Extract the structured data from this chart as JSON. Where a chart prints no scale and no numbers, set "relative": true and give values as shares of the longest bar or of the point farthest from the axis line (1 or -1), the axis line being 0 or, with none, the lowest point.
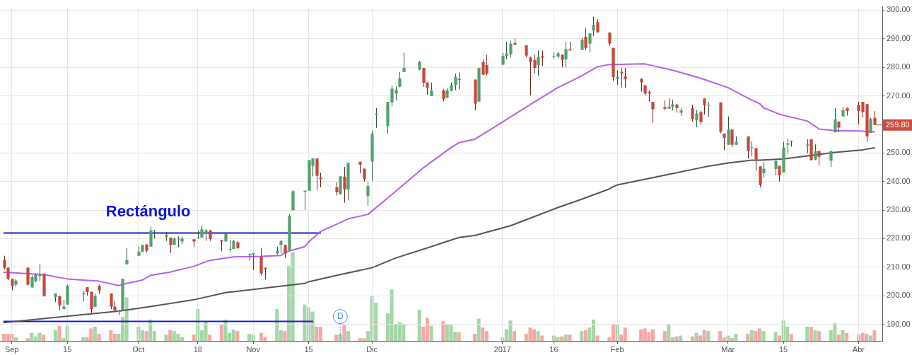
{
  "chart_data": [
    {
      "type": "candlestick",
      "x": [
        "2016-08-30",
        "2016-08-31",
        "2016-09-01",
        "2016-09-02",
        "2016-09-05",
        "2016-09-06",
        "2016-09-07",
        "2016-09-08",
        "2016-09-09",
        "2016-09-12",
        "2016-09-13",
        "2016-09-14",
        "2016-09-15",
        "2016-09-19",
        "2016-09-20",
        "2016-09-21",
        "2016-09-22",
        "2016-09-23",
        "2016-09-26",
        "2016-09-27",
        "2016-09-28",
        "2016-09-29",
        "2016-09-30",
        "2016-10-03",
        "2016-10-04",
        "2016-10-05",
        "2016-10-06",
        "2016-10-07",
        "2016-10-10",
        "2016-10-11",
        "2016-10-12",
        "2016-10-13",
        "2016-10-14",
        "2016-10-17",
        "2016-10-18",
        "2016-10-19",
        "2016-10-20",
        "2016-10-21",
        "2016-10-24",
        "2016-10-25",
        "2016-10-26",
        "2016-10-27",
        "2016-10-28",
        "2016-10-31",
        "2016-11-01",
        "2016-11-03",
        "2016-11-04",
        "2016-11-07",
        "2016-11-08",
        "2016-11-09",
        "2016-11-10",
        "2016-11-11",
        "2016-11-14",
        "2016-11-15",
        "2016-11-16",
        "2016-11-17",
        "2016-11-18",
        "2016-11-22",
        "2016-11-23",
        "2016-11-24",
        "2016-11-25",
        "2016-11-28",
        "2016-11-29",
        "2016-11-30",
        "2016-12-01",
        "2016-12-02",
        "2016-12-05",
        "2016-12-06",
        "2016-12-07",
        "2016-12-08",
        "2016-12-09",
        "2016-12-13",
        "2016-12-14",
        "2016-12-15",
        "2016-12-16",
        "2016-12-19",
        "2016-12-20",
        "2016-12-21",
        "2016-12-22",
        "2016-12-23",
        "2016-12-27",
        "2016-12-28",
        "2016-12-29",
        "2016-12-30",
        "2017-01-03",
        "2017-01-04",
        "2017-01-05",
        "2017-01-06",
        "2017-01-09",
        "2017-01-10",
        "2017-01-11",
        "2017-01-12",
        "2017-01-13",
        "2017-01-16",
        "2017-01-17",
        "2017-01-18",
        "2017-01-19",
        "2017-01-20",
        "2017-01-23",
        "2017-01-24",
        "2017-01-25",
        "2017-01-26",
        "2017-01-27",
        "2017-01-30",
        "2017-01-31",
        "2017-02-01",
        "2017-02-02",
        "2017-02-03",
        "2017-02-07",
        "2017-02-08",
        "2017-02-09",
        "2017-02-10",
        "2017-02-13",
        "2017-02-14",
        "2017-02-15",
        "2017-02-16",
        "2017-02-17",
        "2017-02-20",
        "2017-02-21",
        "2017-02-22",
        "2017-02-23",
        "2017-02-24",
        "2017-02-27",
        "2017-02-28",
        "2017-03-01",
        "2017-03-02",
        "2017-03-03",
        "2017-03-06",
        "2017-03-07",
        "2017-03-08",
        "2017-03-09",
        "2017-03-10",
        "2017-03-13",
        "2017-03-14",
        "2017-03-15",
        "2017-03-16",
        "2017-03-17",
        "2017-03-21",
        "2017-03-22",
        "2017-03-23",
        "2017-03-24",
        "2017-03-27",
        "2017-03-28",
        "2017-03-29",
        "2017-03-30",
        "2017-03-31",
        "2017-04-03",
        "2017-04-04",
        "2017-04-05",
        "2017-04-06",
        "2017-04-07"
      ],
      "ohlc": [
        [
          212.6,
          214.0,
          209.2,
          209.8
        ],
        [
          209.8,
          210.0,
          205.5,
          205.9
        ],
        [
          205.9,
          206.0,
          201.9,
          203.5
        ],
        [
          203.9,
          205.9,
          203.1,
          205.3
        ],
        [
          209.8,
          210.0,
          203.5,
          203.9
        ],
        [
          202.9,
          207.1,
          202.9,
          206.5
        ],
        [
          205.0,
          207.8,
          204.8,
          207.3
        ],
        [
          206.9,
          211.2,
          205.1,
          207.7
        ],
        [
          207.7,
          207.8,
          199.7,
          199.9
        ],
        [
          199.6,
          200.8,
          197.8,
          200.8
        ],
        [
          199.9,
          200.0,
          194.8,
          196.6
        ],
        [
          195.3,
          198.5,
          195.3,
          196.2
        ],
        [
          196.9,
          203.9,
          196.9,
          203.5
        ],
        [
          200.5,
          201.5,
          198.1,
          200.9
        ],
        [
          203.0,
          203.0,
          200.1,
          201.3
        ],
        [
          201.3,
          201.5,
          194.0,
          195.3
        ],
        [
          196.1,
          200.8,
          196.1,
          199.9
        ],
        [
          203.5,
          203.9,
          200.7,
          201.9
        ],
        [
          200.8,
          200.8,
          195.3,
          196.2
        ],
        [
          196.2,
          198.1,
          194.8,
          194.8
        ],
        [
          194.6,
          195.0,
          193.2,
          194.6
        ],
        [
          195.0,
          205.9,
          195.0,
          205.9
        ],
        [
          211.0,
          216.8,
          211.0,
          212.5
        ],
        [
          214.0,
          217.2,
          214.0,
          215.4
        ],
        [
          215.4,
          217.8,
          215.4,
          217.8
        ],
        [
          218.0,
          218.0,
          215.2,
          215.8
        ],
        [
          217.2,
          224.3,
          217.2,
          222.9
        ],
        [
          222.9,
          223.1,
          220.0,
          222.9
        ],
        [
          220.5,
          222.4,
          219.2,
          221.2
        ],
        [
          220.4,
          220.4,
          215.0,
          217.8
        ],
        [
          217.8,
          220.4,
          217.8,
          220.0
        ],
        [
          220.0,
          220.8,
          217.0,
          220.0
        ],
        [
          219.0,
          220.8,
          218.0,
          220.0
        ],
        [
          219.8,
          219.8,
          217.0,
          219.0
        ],
        [
          220.4,
          222.9,
          220.0,
          220.4
        ],
        [
          220.4,
          224.6,
          220.4,
          223.3
        ],
        [
          221.6,
          223.4,
          219.2,
          222.9
        ],
        [
          222.9,
          223.1,
          219.2,
          219.9
        ],
        [
          219.5,
          219.5,
          215.6,
          219.0
        ],
        [
          219.0,
          222.2,
          219.0,
          221.6
        ],
        [
          216.2,
          219.5,
          215.2,
          216.4
        ],
        [
          216.4,
          219.6,
          216.4,
          219.2
        ],
        [
          218.7,
          219.1,
          216.6,
          216.6
        ],
        [
          214.2,
          214.9,
          212.2,
          214.6
        ],
        [
          214.4,
          214.9,
          209.0,
          214.9
        ],
        [
          213.8,
          216.8,
          207.1,
          207.8
        ],
        [
          209.8,
          209.8,
          205.7,
          209.3
        ],
        [
          214.8,
          217.2,
          214.4,
          215.8
        ],
        [
          217.8,
          219.6,
          215.0,
          219.1
        ],
        [
          217.8,
          217.8,
          213.2,
          214.8
        ],
        [
          215.8,
          228.5,
          215.8,
          227.9
        ],
        [
          229.9,
          237.0,
          229.9,
          236.6
        ],
        [
          236.4,
          236.8,
          230.1,
          236.8
        ],
        [
          236.8,
          247.5,
          236.8,
          247.5
        ],
        [
          245.5,
          248.1,
          241.8,
          248.1
        ],
        [
          248.1,
          248.1,
          237.0,
          242.0
        ],
        [
          241.4,
          243.1,
          238.0,
          240.8
        ],
        [
          238.0,
          239.8,
          235.1,
          236.2
        ],
        [
          235.5,
          241.8,
          235.5,
          241.8
        ],
        [
          241.7,
          245.1,
          232.6,
          237.2
        ],
        [
          237.2,
          246.5,
          233.4,
          246.5
        ],
        [
          246.9,
          246.9,
          242.9,
          245.9
        ],
        [
          244.5,
          244.5,
          240.0,
          240.8
        ],
        [
          234.9,
          239.7,
          231.5,
          238.4
        ],
        [
          247.0,
          257.8,
          240.1,
          256.8
        ],
        [
          263.3,
          265.7,
          258.8,
          263.8
        ],
        [
          259.4,
          267.9,
          256.8,
          267.9
        ],
        [
          267.7,
          273.6,
          266.3,
          272.5
        ],
        [
          270.8,
          273.3,
          268.5,
          272.1
        ],
        [
          273.2,
          278.4,
          273.0,
          276.2
        ],
        [
          278.4,
          285.1,
          278.4,
          279.8
        ],
        [
          279.2,
          282.2,
          279.0,
          281.8
        ],
        [
          279.8,
          279.8,
          273.1,
          274.6
        ],
        [
          274.7,
          274.7,
          270.4,
          272.8
        ],
        [
          269.9,
          274.7,
          269.9,
          271.9
        ],
        [
          271.9,
          272.3,
          268.1,
          268.9
        ],
        [
          269.3,
          272.7,
          269.3,
          271.9
        ],
        [
          271.7,
          274.7,
          271.7,
          273.8
        ],
        [
          273.8,
          277.8,
          272.0,
          276.7
        ],
        [
          275.9,
          278.2,
          272.3,
          275.6
        ],
        [
          275.7,
          275.7,
          265.0,
          267.3
        ],
        [
          268.0,
          279.8,
          268.0,
          279.8
        ],
        [
          281.8,
          282.8,
          277.4,
          277.4
        ],
        [
          280.8,
          284.4,
          277.1,
          277.8
        ],
        [
          280.9,
          285.0,
          280.9,
          284.0
        ],
        [
          284.0,
          288.9,
          282.8,
          284.9
        ],
        [
          284.6,
          289.3,
          283.3,
          288.3
        ],
        [
          288.5,
          290.1,
          287.9,
          287.9
        ],
        [
          287.7,
          287.7,
          283.6,
          284.1
        ],
        [
          283.4,
          283.8,
          270.1,
          281.8
        ],
        [
          282.6,
          284.4,
          277.9,
          279.8
        ],
        [
          280.8,
          285.9,
          277.1,
          283.7
        ],
        [
          283.9,
          285.9,
          280.4,
          283.4
        ],
        [
          284.0,
          285.2,
          282.8,
          284.0
        ],
        [
          283.8,
          285.4,
          283.3,
          284.9
        ],
        [
          284.4,
          284.4,
          280.0,
          282.6
        ],
        [
          282.8,
          288.9,
          280.0,
          286.4
        ],
        [
          286.3,
          288.9,
          285.9,
          285.9
        ],
        [
          286.1,
          290.3,
          286.1,
          289.7
        ],
        [
          290.7,
          293.9,
          286.0,
          286.8
        ],
        [
          288.3,
          291.9,
          285.1,
          291.9
        ],
        [
          292.9,
          297.7,
          290.9,
          294.9
        ],
        [
          295.8,
          296.8,
          292.2,
          292.2
        ],
        [
          292.2,
          292.2,
          287.5,
          288.3
        ],
        [
          286.8,
          286.8,
          275.2,
          276.6
        ],
        [
          276.0,
          279.0,
          273.9,
          276.7
        ],
        [
          278.4,
          279.8,
          272.9,
          277.9
        ],
        [
          276.8,
          279.8,
          272.9,
          275.9
        ],
        [
          275.9,
          276.2,
          271.5,
          274.7
        ],
        [
          273.7,
          273.7,
          270.1,
          270.8
        ],
        [
          271.3,
          271.9,
          268.1,
          270.8
        ],
        [
          267.9,
          267.9,
          260.6,
          265.3
        ],
        [
          266.1,
          268.5,
          265.0,
          265.5
        ],
        [
          265.5,
          269.1,
          265.5,
          266.2
        ],
        [
          266.2,
          268.7,
          264.9,
          267.0
        ],
        [
          267.0,
          267.0,
          264.1,
          265.7
        ],
        [
          264.1,
          265.8,
          263.1,
          264.9
        ],
        [
          265.7,
          266.8,
          261.0,
          261.9
        ],
        [
          261.4,
          265.0,
          259.0,
          263.8
        ],
        [
          264.3,
          264.9,
          260.0,
          260.8
        ],
        [
          269.1,
          269.1,
          263.5,
          266.7
        ],
        [
          266.8,
          267.9,
          262.6,
          266.8
        ],
        [
          267.7,
          267.7,
          256.9,
          257.4
        ],
        [
          256.8,
          256.8,
          251.0,
          255.3
        ],
        [
          252.9,
          262.8,
          252.9,
          258.2
        ],
        [
          258.2,
          258.2,
          252.1,
          252.9
        ],
        [
          252.9,
          255.8,
          252.9,
          254.0
        ],
        [
          255.8,
          255.8,
          248.0,
          250.7
        ],
        [
          251.9,
          254.0,
          248.9,
          251.9
        ],
        [
          251.7,
          251.7,
          243.9,
          247.7
        ],
        [
          245.3,
          245.3,
          238.0,
          238.8
        ],
        [
          242.9,
          246.9,
          241.4,
          244.5
        ],
        [
          244.4,
          247.3,
          242.2,
          247.3
        ],
        [
          245.5,
          245.5,
          240.0,
          242.2
        ],
        [
          243.2,
          253.9,
          243.2,
          251.9
        ],
        [
          252.9,
          255.0,
          249.9,
          253.4
        ],
        [
          254.3,
          254.3,
          252.2,
          254.1
        ],
        [
          252.6,
          254.8,
          249.9,
          253.0
        ],
        [
          254.8,
          254.8,
          247.5,
          247.5
        ],
        [
          247.7,
          253.0,
          247.5,
          250.7
        ],
        [
          250.7,
          250.7,
          245.6,
          248.7
        ],
        [
          247.3,
          250.7,
          245.1,
          250.7
        ],
        [
          257.2,
          265.7,
          257.2,
          261.8
        ],
        [
          261.0,
          261.0,
          257.4,
          258.9
        ],
        [
          262.8,
          266.2,
          262.8,
          265.0
        ],
        [
          265.8,
          265.8,
          263.1,
          264.7
        ],
        [
          266.9,
          267.9,
          260.0,
          264.7
        ],
        [
          267.9,
          267.9,
          262.3,
          264.3
        ],
        [
          267.1,
          267.1,
          253.9,
          255.8
        ],
        [
          257.0,
          262.4,
          257.0,
          261.9
        ],
        [
          262.3,
          264.7,
          259.8,
          259.8
        ]
      ],
      "colors": [
        "#c8463a",
        "#c8463a",
        "#c8463a",
        "#53a06e",
        "#c8463a",
        "#53a06e",
        "#53a06e",
        "#53a06e",
        "#c8463a",
        "#53a06e",
        "#c8463a",
        "#53a06e",
        "#53a06e",
        "#53a06e",
        "#c8463a",
        "#c8463a",
        "#53a06e",
        "#c8463a",
        "#c8463a",
        "#c8463a",
        "#53a06e",
        "#53a06e",
        "#53a06e",
        "#53a06e",
        "#53a06e",
        "#c8463a",
        "#53a06e",
        "#53a06e",
        "#53a06e",
        "#c8463a",
        "#53a06e",
        "#53a06e",
        "#53a06e",
        "#c8463a",
        "#53a06e",
        "#53a06e",
        "#53a06e",
        "#c8463a",
        "#c8463a",
        "#53a06e",
        "#53a06e",
        "#53a06e",
        "#c8463a",
        "#53a06e",
        "#53a06e",
        "#c8463a",
        "#c8463a",
        "#53a06e",
        "#53a06e",
        "#c8463a",
        "#53a06e",
        "#53a06e",
        "#53a06e",
        "#53a06e",
        "#53a06e",
        "#c8463a",
        "#c8463a",
        "#c8463a",
        "#53a06e",
        "#c8463a",
        "#53a06e",
        "#c8463a",
        "#c8463a",
        "#53a06e",
        "#53a06e",
        "#53a06e",
        "#53a06e",
        "#53a06e",
        "#53a06e",
        "#53a06e",
        "#53a06e",
        "#53a06e",
        "#c8463a",
        "#c8463a",
        "#53a06e",
        "#c8463a",
        "#53a06e",
        "#53a06e",
        "#53a06e",
        "#c8463a",
        "#c8463a",
        "#53a06e",
        "#c8463a",
        "#c8463a",
        "#53a06e",
        "#53a06e",
        "#53a06e",
        "#c8463a",
        "#c8463a",
        "#c8463a",
        "#c8463a",
        "#53a06e",
        "#c8463a",
        "#53a06e",
        "#53a06e",
        "#c8463a",
        "#53a06e",
        "#c8463a",
        "#53a06e",
        "#c8463a",
        "#53a06e",
        "#53a06e",
        "#c8463a",
        "#c8463a",
        "#c8463a",
        "#53a06e",
        "#c8463a",
        "#c8463a",
        "#c8463a",
        "#c8463a",
        "#c8463a",
        "#c8463a",
        "#c8463a",
        "#53a06e",
        "#53a06e",
        "#c8463a",
        "#53a06e",
        "#c8463a",
        "#53a06e",
        "#c8463a",
        "#c8463a",
        "#53a06e",
        "#c8463a",
        "#c8463a",
        "#53a06e",
        "#c8463a",
        "#53a06e",
        "#c8463a",
        "#53a06e",
        "#c8463a",
        "#c8463a",
        "#53a06e",
        "#53a06e",
        "#c8463a",
        "#53a06e",
        "#53a06e",
        "#c8463a",
        "#53a06e",
        "#c8463a",
        "#53a06e",
        "#c8463a",
        "#53a06e",
        "#53a06e",
        "#c8463a",
        "#53a06e",
        "#c8463a",
        "#c8463a",
        "#c8463a",
        "#c8463a",
        "#53a06e",
        "#c8463a"
      ],
      "series": [
        {
          "type": "line",
          "color": "#b660e8",
          "x": [
            "2016-08-30",
            "2016-09-09",
            "2016-09-15",
            "2016-09-23",
            "2016-09-28",
            "2016-09-30",
            "2016-10-04",
            "2016-10-06",
            "2016-10-11",
            "2016-10-17",
            "2016-10-21",
            "2016-10-27",
            "2016-11-03",
            "2016-11-08",
            "2016-11-09",
            "2016-11-14",
            "2016-11-15",
            "2016-11-18",
            "2016-11-25",
            "2016-11-30",
            "2016-12-06",
            "2016-12-14",
            "2016-12-21",
            "2016-12-23",
            "2016-12-27",
            "2017-01-03",
            "2017-01-09",
            "2017-01-17",
            "2017-01-23",
            "2017-01-27",
            "2017-01-30",
            "2017-01-31",
            "2017-02-08",
            "2017-02-15",
            "2017-02-22",
            "2017-03-01",
            "2017-03-07",
            "2017-03-09",
            "2017-03-10",
            "2017-03-14",
            "2017-03-21",
            "2017-03-24",
            "2017-03-28",
            "2017-04-03",
            "2017-04-07"
          ],
          "values": [
            208.2,
            207.4,
            205.9,
            205.1,
            203.6,
            204.3,
            205.5,
            207.1,
            208.3,
            210.3,
            212.4,
            213.6,
            213.8,
            214.1,
            215.2,
            217.2,
            218.8,
            222.5,
            226.9,
            228.5,
            235.4,
            244.8,
            251.9,
            253.6,
            254.8,
            260.8,
            266.1,
            272.9,
            277.0,
            280.2,
            281.0,
            281.0,
            281.2,
            279.0,
            276.2,
            272.9,
            268.5,
            267.3,
            265.8,
            263.6,
            261.2,
            258.4,
            257.8,
            257.7,
            257.4
          ]
        },
        {
          "type": "line",
          "color": "#555555",
          "x": [
            "2016-08-30",
            "2016-09-09",
            "2016-09-22",
            "2016-09-28",
            "2016-10-06",
            "2016-10-17",
            "2016-10-25",
            "2016-11-03",
            "2016-11-09",
            "2016-11-14",
            "2016-11-15",
            "2016-11-23",
            "2016-12-01",
            "2016-12-07",
            "2016-12-16",
            "2016-12-21",
            "2016-12-23",
            "2016-12-27",
            "2017-01-05",
            "2017-01-17",
            "2017-01-23",
            "2017-01-30",
            "2017-01-31",
            "2017-02-01",
            "2017-02-13",
            "2017-02-23",
            "2017-03-01",
            "2017-03-07",
            "2017-03-09",
            "2017-03-15",
            "2017-03-28",
            "2017-04-04",
            "2017-04-07"
          ],
          "values": [
            190.6,
            192.0,
            193.8,
            194.6,
            196.2,
            198.6,
            201.1,
            202.5,
            203.5,
            204.3,
            204.9,
            207.4,
            209.8,
            213.2,
            217.2,
            219.5,
            220.4,
            221.1,
            224.5,
            230.9,
            233.8,
            237.4,
            238.2,
            238.8,
            242.2,
            245.1,
            246.5,
            247.5,
            247.5,
            247.9,
            250.2,
            251.1,
            251.8
          ]
        },
        {
          "type": "line",
          "color": "#1a1acc",
          "x": [
            "2016-08-30",
            "2016-11-18"
          ],
          "values": [
            222,
            222
          ]
        },
        {
          "type": "line",
          "color": "#1a1acc",
          "x": [
            "2016-08-30",
            "2016-11-16"
          ],
          "values": [
            191,
            191
          ]
        }
      ],
      "xlim": [
        "2016-08-29",
        "2017-04-09"
      ],
      "xticks": [
        {
          "value": "2016-09-01",
          "label": "Sep"
        },
        {
          "value": "2016-09-15",
          "label": "15"
        },
        {
          "value": "2016-10-03",
          "label": "Oct"
        },
        {
          "value": "2016-10-18",
          "label": "18"
        },
        {
          "value": "2016-11-01",
          "label": "Nov"
        },
        {
          "value": "2016-11-15",
          "label": "15"
        },
        {
          "value": "2016-12-01",
          "label": "Dic"
        },
        {
          "value": "2017-01-03",
          "label": "2017"
        },
        {
          "value": "2017-01-16",
          "label": "16"
        },
        {
          "value": "2017-02-01",
          "label": "Feb"
        },
        {
          "value": "2017-03-01",
          "label": "Mar"
        },
        {
          "value": "2017-03-15",
          "label": "15"
        },
        {
          "value": "2017-04-03",
          "label": "Abr"
        }
      ],
      "ylim": [
        184.2,
        301.2
      ],
      "yticks": [
        {
          "value": 190,
          "label": "190.00"
        },
        {
          "value": 200,
          "label": "200.00"
        },
        {
          "value": 210,
          "label": "210.00"
        },
        {
          "value": 220,
          "label": "220.00"
        },
        {
          "value": 230,
          "label": "230.00"
        },
        {
          "value": 240,
          "label": "240.00"
        },
        {
          "value": 250,
          "label": "250.00"
        },
        {
          "value": 260,
          "label": null
        },
        {
          "value": 270,
          "label": "270.00"
        },
        {
          "value": 280,
          "label": "280.00"
        },
        {
          "value": 290,
          "label": "290.00"
        },
        {
          "value": 300,
          "label": "300.00"
        }
      ],
      "grid": true,
      "annotations": [
        "Rectángulo",
        {
          "text": "D",
          "x": "2016-11-23",
          "y": 192.7
        },
        {
          "text": "259.80",
          "x": "2017-04-07",
          "y": 259.8
        }
      ]
    },
    {
      "type": "bar",
      "relative": true,
      "tick_labels": false,
      "x": [
        "2016-08-30",
        "2016-08-31",
        "2016-09-01",
        "2016-09-02",
        "2016-09-05",
        "2016-09-06",
        "2016-09-07",
        "2016-09-08",
        "2016-09-09",
        "2016-09-12",
        "2016-09-13",
        "2016-09-14",
        "2016-09-15",
        "2016-09-19",
        "2016-09-20",
        "2016-09-21",
        "2016-09-22",
        "2016-09-23",
        "2016-09-26",
        "2016-09-27",
        "2016-09-28",
        "2016-09-29",
        "2016-09-30",
        "2016-10-03",
        "2016-10-04",
        "2016-10-05",
        "2016-10-06",
        "2016-10-07",
        "2016-10-10",
        "2016-10-11",
        "2016-10-12",
        "2016-10-13",
        "2016-10-14",
        "2016-10-17",
        "2016-10-18",
        "2016-10-19",
        "2016-10-20",
        "2016-10-21",
        "2016-10-24",
        "2016-10-25",
        "2016-10-26",
        "2016-10-27",
        "2016-10-28",
        "2016-10-31",
        "2016-11-01",
        "2016-11-03",
        "2016-11-04",
        "2016-11-07",
        "2016-11-08",
        "2016-11-09",
        "2016-11-10",
        "2016-11-11",
        "2016-11-14",
        "2016-11-15",
        "2016-11-16",
        "2016-11-17",
        "2016-11-18",
        "2016-11-22",
        "2016-11-23",
        "2016-11-24",
        "2016-11-25",
        "2016-11-28",
        "2016-11-29",
        "2016-11-30",
        "2016-12-01",
        "2016-12-02",
        "2016-12-05",
        "2016-12-06",
        "2016-12-07",
        "2016-12-08",
        "2016-12-09",
        "2016-12-13",
        "2016-12-14",
        "2016-12-15",
        "2016-12-16",
        "2016-12-19",
        "2016-12-20",
        "2016-12-21",
        "2016-12-22",
        "2016-12-23",
        "2016-12-27",
        "2016-12-28",
        "2016-12-29",
        "2016-12-30",
        "2017-01-03",
        "2017-01-04",
        "2017-01-05",
        "2017-01-06",
        "2017-01-09",
        "2017-01-10",
        "2017-01-11",
        "2017-01-12",
        "2017-01-13",
        "2017-01-16",
        "2017-01-17",
        "2017-01-18",
        "2017-01-19",
        "2017-01-20",
        "2017-01-23",
        "2017-01-24",
        "2017-01-25",
        "2017-01-26",
        "2017-01-27",
        "2017-01-30",
        "2017-01-31",
        "2017-02-01",
        "2017-02-02",
        "2017-02-03",
        "2017-02-07",
        "2017-02-08",
        "2017-02-09",
        "2017-02-10",
        "2017-02-13",
        "2017-02-14",
        "2017-02-15",
        "2017-02-16",
        "2017-02-17",
        "2017-02-20",
        "2017-02-21",
        "2017-02-22",
        "2017-02-23",
        "2017-02-24",
        "2017-02-27",
        "2017-02-28",
        "2017-03-01",
        "2017-03-02",
        "2017-03-03",
        "2017-03-06",
        "2017-03-07",
        "2017-03-08",
        "2017-03-09",
        "2017-03-10",
        "2017-03-13",
        "2017-03-14",
        "2017-03-15",
        "2017-03-16",
        "2017-03-17",
        "2017-03-21",
        "2017-03-22",
        "2017-03-23",
        "2017-03-24",
        "2017-03-27",
        "2017-03-28",
        "2017-03-29",
        "2017-03-30",
        "2017-03-31",
        "2017-04-03",
        "2017-04-04",
        "2017-04-05",
        "2017-04-06",
        "2017-04-07"
      ],
      "values": [
        0.08,
        0.08,
        0.08,
        0.04,
        0.03,
        0.09,
        0.05,
        0.09,
        0.07,
        0.12,
        0.17,
        0.03,
        0.17,
        0.04,
        0.04,
        0.14,
        0.16,
        0.08,
        0.12,
        0.08,
        0.08,
        0.27,
        0.49,
        0.16,
        0.12,
        0.11,
        0.24,
        0.11,
        0.07,
        0.12,
        0.11,
        0.08,
        0.04,
        0.07,
        0.36,
        0.12,
        0.22,
        0.07,
        0.18,
        0.24,
        0.09,
        0.13,
        0.11,
        0.08,
        0.07,
        0.09,
        0.04,
        0.36,
        0.12,
        0.11,
        0.85,
        1,
        0.41,
        0.38,
        0.33,
        0.16,
        0.16,
        0.07,
        0.08,
        0.18,
        0.11,
        0.03,
        0.03,
        0.11,
        0.51,
        0.43,
        0.31,
        0.58,
        0.19,
        0.21,
        0.19,
        0.35,
        0.16,
        0.26,
        0.17,
        0.22,
        0.19,
        0.18,
        0.1,
        0.1,
        0.08,
        0.25,
        0.15,
        0.11,
        0.04,
        0.13,
        0.23,
        0.11,
        0.08,
        0.15,
        0.13,
        0.11,
        0.06,
        0.06,
        0.04,
        0.05,
        0.07,
        0.07,
        0.11,
        0.12,
        0.15,
        0.24,
        0.06,
        0.04,
        0.19,
        0.19,
        0.07,
        0.15,
        0.13,
        0.14,
        0.1,
        0.13,
        0.11,
        0.18,
        0.04,
        0.05,
        0.06,
        0.05,
        0.09,
        0.06,
        0.12,
        0.11,
        0.11,
        0.04,
        0.06,
        0.03,
        0.08,
        0.08,
        0.12,
        0.11,
        0.14,
        0.11,
        0.1,
        0.06,
        0.23,
        0.16,
        0.08,
        0.16,
        0.16,
        0.12,
        0.11,
        0.12,
        0.2,
        0.07,
        0.12,
        0.09,
        0.07,
        0.09,
        0.08,
        0.06,
        0.12
      ],
      "colors": [
        "#f7a8a6",
        "#f7a8a6",
        "#f7a8a6",
        "#a5d6a7",
        "#f7a8a6",
        "#a5d6a7",
        "#a5d6a7",
        "#a5d6a7",
        "#f7a8a6",
        "#a5d6a7",
        "#f7a8a6",
        "#a5d6a7",
        "#a5d6a7",
        "#a5d6a7",
        "#f7a8a6",
        "#f7a8a6",
        "#a5d6a7",
        "#f7a8a6",
        "#f7a8a6",
        "#f7a8a6",
        "#a5d6a7",
        "#a5d6a7",
        "#a5d6a7",
        "#a5d6a7",
        "#a5d6a7",
        "#f7a8a6",
        "#a5d6a7",
        "#a5d6a7",
        "#a5d6a7",
        "#f7a8a6",
        "#a5d6a7",
        "#a5d6a7",
        "#a5d6a7",
        "#f7a8a6",
        "#a5d6a7",
        "#a5d6a7",
        "#a5d6a7",
        "#f7a8a6",
        "#f7a8a6",
        "#a5d6a7",
        "#a5d6a7",
        "#a5d6a7",
        "#f7a8a6",
        "#a5d6a7",
        "#a5d6a7",
        "#f7a8a6",
        "#f7a8a6",
        "#a5d6a7",
        "#a5d6a7",
        "#f7a8a6",
        "#a5d6a7",
        "#a5d6a7",
        "#a5d6a7",
        "#a5d6a7",
        "#a5d6a7",
        "#f7a8a6",
        "#f7a8a6",
        "#f7a8a6",
        "#a5d6a7",
        "#f7a8a6",
        "#a5d6a7",
        "#f7a8a6",
        "#f7a8a6",
        "#a5d6a7",
        "#a5d6a7",
        "#a5d6a7",
        "#a5d6a7",
        "#a5d6a7",
        "#a5d6a7",
        "#a5d6a7",
        "#a5d6a7",
        "#a5d6a7",
        "#f7a8a6",
        "#f7a8a6",
        "#a5d6a7",
        "#f7a8a6",
        "#a5d6a7",
        "#a5d6a7",
        "#a5d6a7",
        "#f7a8a6",
        "#f7a8a6",
        "#a5d6a7",
        "#f7a8a6",
        "#f7a8a6",
        "#a5d6a7",
        "#a5d6a7",
        "#a5d6a7",
        "#f7a8a6",
        "#f7a8a6",
        "#f7a8a6",
        "#f7a8a6",
        "#a5d6a7",
        "#f7a8a6",
        "#a5d6a7",
        "#a5d6a7",
        "#f7a8a6",
        "#a5d6a7",
        "#f7a8a6",
        "#a5d6a7",
        "#f7a8a6",
        "#a5d6a7",
        "#a5d6a7",
        "#f7a8a6",
        "#f7a8a6",
        "#f7a8a6",
        "#a5d6a7",
        "#f7a8a6",
        "#f7a8a6",
        "#f7a8a6",
        "#f7a8a6",
        "#f7a8a6",
        "#f7a8a6",
        "#f7a8a6",
        "#a5d6a7",
        "#a5d6a7",
        "#f7a8a6",
        "#a5d6a7",
        "#f7a8a6",
        "#a5d6a7",
        "#f7a8a6",
        "#f7a8a6",
        "#a5d6a7",
        "#f7a8a6",
        "#f7a8a6",
        "#a5d6a7",
        "#f7a8a6",
        "#a5d6a7",
        "#f7a8a6",
        "#a5d6a7",
        "#f7a8a6",
        "#f7a8a6",
        "#a5d6a7",
        "#a5d6a7",
        "#f7a8a6",
        "#a5d6a7",
        "#a5d6a7",
        "#f7a8a6",
        "#a5d6a7",
        "#f7a8a6",
        "#a5d6a7",
        "#f7a8a6",
        "#a5d6a7",
        "#a5d6a7",
        "#f7a8a6",
        "#a5d6a7",
        "#f7a8a6",
        "#f7a8a6",
        "#f7a8a6",
        "#f7a8a6",
        "#a5d6a7",
        "#f7a8a6"
      ],
      "xlim": [
        "2016-08-29",
        "2017-04-09"
      ]
    }
  ]
}
